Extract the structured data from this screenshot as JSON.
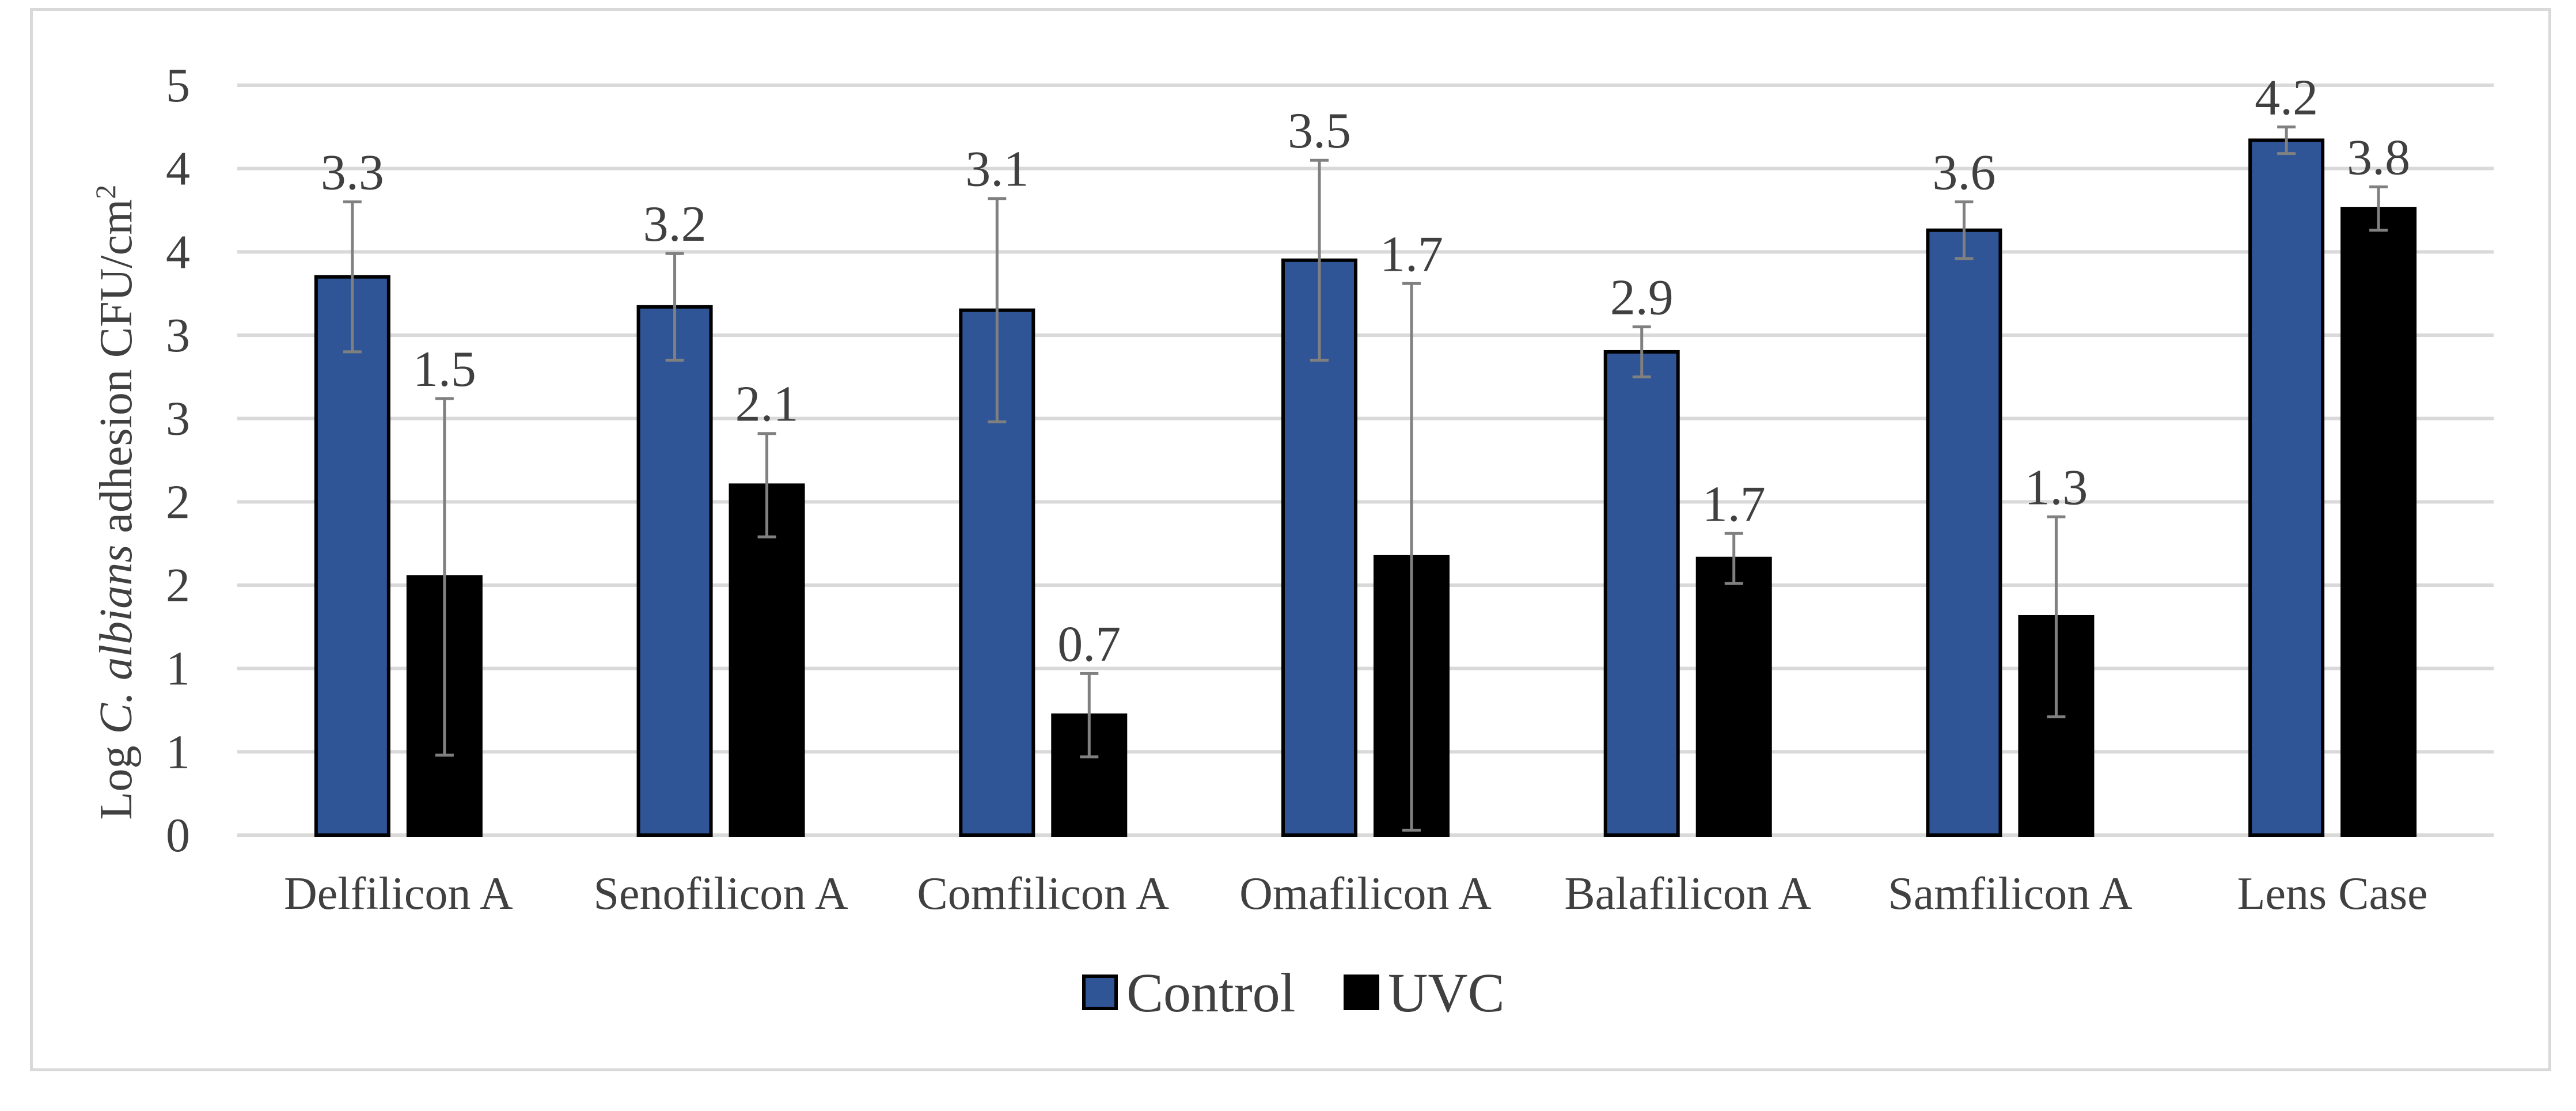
{
  "chart_data": {
    "type": "bar",
    "title": "",
    "xlabel": "",
    "ylabel": {
      "prefix": "Log ",
      "italic": "C. albians",
      "suffix": " adhesion CFU/cm",
      "superscript": "2"
    },
    "y_tick_labels": [
      "0",
      "1",
      "1",
      "2",
      "2",
      "3",
      "3",
      "4",
      "4",
      "5"
    ],
    "ylim": [
      0,
      4.5
    ],
    "y_step": 0.5,
    "grid": true,
    "legend_position": "bottom",
    "categories": [
      "Delfilicon A",
      "Senofilicon A",
      "Comfilicon A",
      "Omafilicon A",
      "Balafilicon A",
      "Samfilicon A",
      "Lens Case"
    ],
    "series": [
      {
        "name": "Control",
        "color": "#2f5597",
        "values": [
          3.35,
          3.17,
          3.15,
          3.45,
          2.9,
          3.63,
          4.17
        ],
        "error": [
          0.45,
          0.32,
          0.67,
          0.6,
          0.15,
          0.17,
          0.08
        ],
        "labels": [
          "3.3",
          "3.2",
          "3.1",
          "3.5",
          "2.9",
          "3.6",
          "4.2"
        ]
      },
      {
        "name": "UVC",
        "color": "#000000",
        "values": [
          1.55,
          2.1,
          0.72,
          1.67,
          1.66,
          1.31,
          3.76
        ],
        "error": [
          1.07,
          0.31,
          0.25,
          1.64,
          0.15,
          0.6,
          0.13
        ],
        "labels": [
          "1.5",
          "2.1",
          "0.7",
          "1.7",
          "1.7",
          "1.3",
          "3.8"
        ]
      }
    ]
  }
}
